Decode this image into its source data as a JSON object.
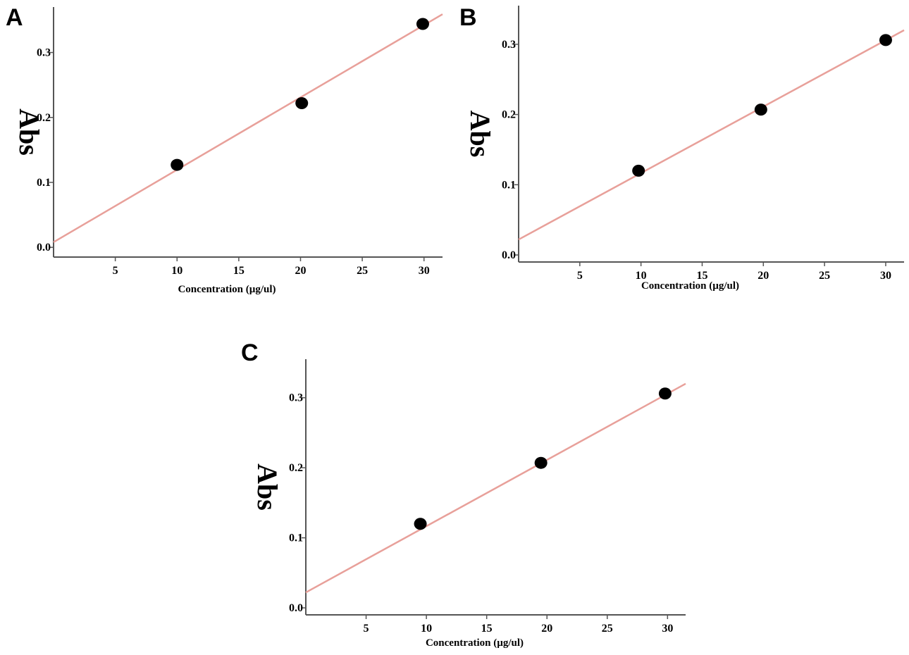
{
  "chart_data": [
    {
      "panel": "A",
      "type": "scatter",
      "xlabel": "Concentration (µg/ul)",
      "ylabel": "Abs",
      "xlim": [
        0,
        31.5
      ],
      "ylim": [
        -0.015,
        0.37
      ],
      "xticks": [
        5,
        10,
        15,
        20,
        25,
        30
      ],
      "yticks": [
        0.0,
        0.1,
        0.2,
        0.3
      ],
      "points": {
        "x": [
          10,
          20.1,
          29.9
        ],
        "y": [
          0.127,
          0.222,
          0.344
        ]
      },
      "fit": {
        "x": [
          0,
          31.5
        ],
        "y": [
          0.008,
          0.359
        ]
      },
      "grid": false,
      "colors": {
        "points": "#000000",
        "fit_line": "#e8a09a",
        "axes": "#555555"
      }
    },
    {
      "panel": "B",
      "type": "scatter",
      "xlabel": "Concentration (µg/ul)",
      "ylabel": "Abs",
      "xlim": [
        0,
        31.5
      ],
      "ylim": [
        -0.01,
        0.355
      ],
      "xticks": [
        5,
        10,
        15,
        20,
        25,
        30
      ],
      "yticks": [
        0.0,
        0.1,
        0.2,
        0.3
      ],
      "points": {
        "x": [
          9.8,
          19.8,
          30
        ],
        "y": [
          0.12,
          0.207,
          0.306
        ]
      },
      "fit": {
        "x": [
          0,
          31.5
        ],
        "y": [
          0.022,
          0.32
        ]
      },
      "grid": false,
      "colors": {
        "points": "#000000",
        "fit_line": "#e8a09a",
        "axes": "#555555"
      }
    },
    {
      "panel": "C",
      "type": "scatter",
      "xlabel": "Concentration (µg/ul)",
      "ylabel": "Abs",
      "xlim": [
        0,
        31.5
      ],
      "ylim": [
        -0.01,
        0.355
      ],
      "xticks": [
        5,
        10,
        15,
        20,
        25,
        30
      ],
      "yticks": [
        0.0,
        0.1,
        0.2,
        0.3
      ],
      "points": {
        "x": [
          9.5,
          19.5,
          29.8
        ],
        "y": [
          0.12,
          0.207,
          0.306
        ]
      },
      "fit": {
        "x": [
          0,
          31.5
        ],
        "y": [
          0.022,
          0.32
        ]
      },
      "grid": false,
      "colors": {
        "points": "#000000",
        "fit_line": "#e8a09a",
        "axes": "#555555"
      }
    }
  ]
}
